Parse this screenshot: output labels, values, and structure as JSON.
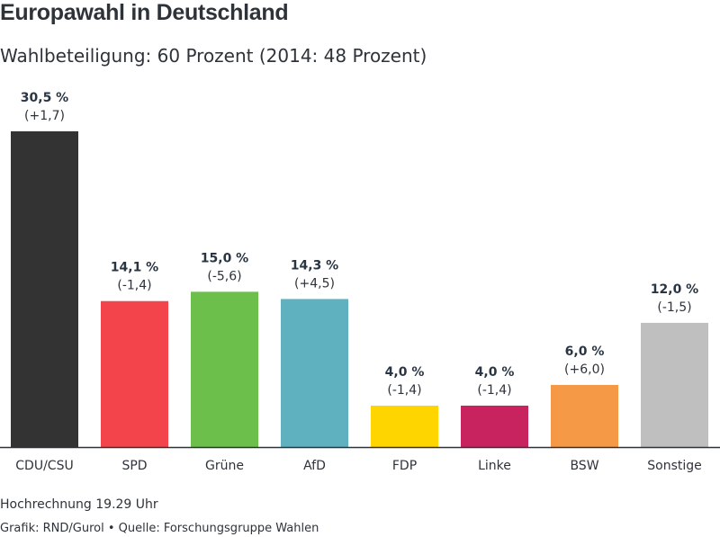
{
  "title": "Europawahl in Deutschland",
  "subtitle": "Wahlbeteiligung: 60 Prozent (2014: 48 Prozent)",
  "note": "Hochrechnung 19.29 Uhr",
  "source": "Grafik: RND/Gurol • Quelle: Forschungsgruppe Wahlen",
  "chart_data": {
    "type": "bar",
    "title": "Europawahl in Deutschland",
    "subtitle": "Wahlbeteiligung: 60 Prozent (2014: 48 Prozent)",
    "xlabel": "",
    "ylabel": "",
    "ylim": [
      0,
      30.5
    ],
    "grid": false,
    "legend": "none",
    "categories": [
      "CDU/CSU",
      "SPD",
      "Grüne",
      "AfD",
      "FDP",
      "Linke",
      "BSW",
      "Sonstige"
    ],
    "values": [
      30.5,
      14.1,
      15.0,
      14.3,
      4.0,
      4.0,
      6.0,
      12.0
    ],
    "value_labels": [
      "30,5 %",
      "14,1 %",
      "15,0 %",
      "14,3 %",
      "4,0 %",
      "4,0 %",
      "6,0 %",
      "12,0 %"
    ],
    "change_labels": [
      "(+1,7)",
      "(-1,4)",
      "(-5,6)",
      "(+4,5)",
      "(-1,4)",
      "(-1,4)",
      "(+6,0)",
      "(-1,5)"
    ],
    "colors": [
      "#333333",
      "#f2444a",
      "#6cbf4b",
      "#5fb1c0",
      "#ffd500",
      "#c8235f",
      "#f59947",
      "#bfbfbf"
    ],
    "axis_color": "#2e333a"
  }
}
